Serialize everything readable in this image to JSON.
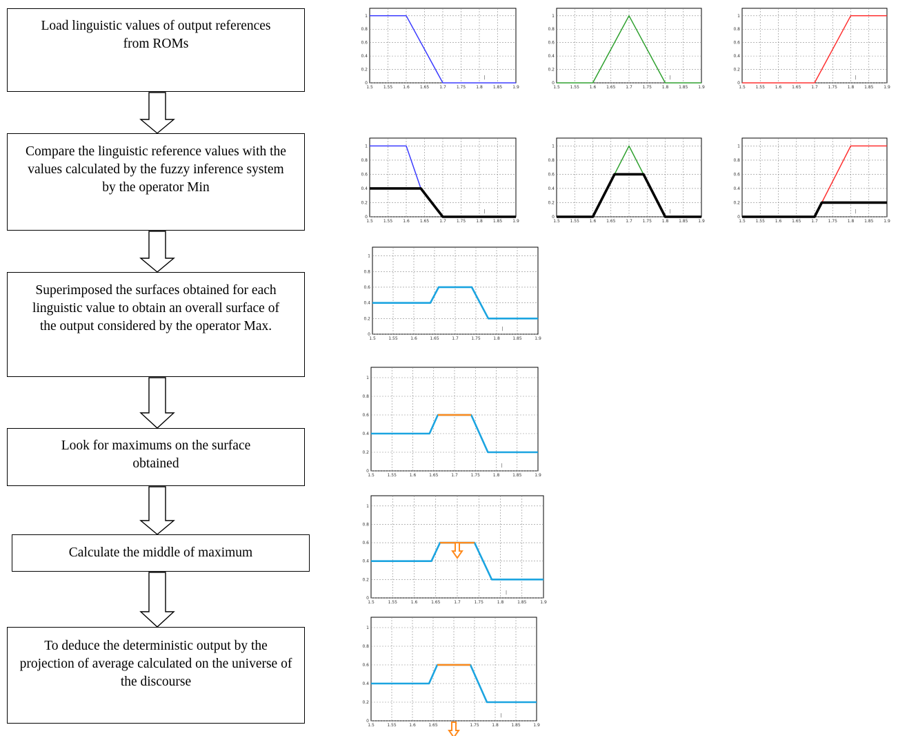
{
  "steps": [
    {
      "text": "Load linguistic values of output references from ROMs"
    },
    {
      "text": "Compare the linguistic reference values with the values calculated by the fuzzy inference system by the operator Min"
    },
    {
      "text": "Superimposed the surfaces obtained for each linguistic value to obtain an overall surface of the output considered by the operator Max."
    },
    {
      "text": "Look for maximums on the surface obtained"
    },
    {
      "text": "Calculate the middle of maximum"
    },
    {
      "text": "To deduce the deterministic output by the projection of average calculated on the universe of the discourse"
    }
  ],
  "colors": {
    "blue": "#3b3bff",
    "green": "#2ea02e",
    "red": "#ff3030",
    "black": "#000000",
    "cyan": "#1ba4e0",
    "orange": "#ff8a1c"
  },
  "chart_data": [
    {
      "type": "line",
      "x": [
        1.5,
        1.6,
        1.7,
        1.9
      ],
      "series": [
        {
          "values": [
            1,
            1,
            0,
            0
          ],
          "color": "blue"
        }
      ],
      "xlim": [
        1.5,
        1.9
      ],
      "ylim": [
        0,
        1
      ]
    },
    {
      "type": "line",
      "x": [
        1.5,
        1.6,
        1.7,
        1.8,
        1.9
      ],
      "series": [
        {
          "values": [
            0,
            0,
            1,
            0,
            0
          ],
          "color": "green"
        }
      ],
      "xlim": [
        1.5,
        1.9
      ],
      "ylim": [
        0,
        1
      ]
    },
    {
      "type": "line",
      "x": [
        1.5,
        1.7,
        1.8,
        1.9
      ],
      "series": [
        {
          "values": [
            0,
            0,
            1,
            1
          ],
          "color": "red"
        }
      ],
      "xlim": [
        1.5,
        1.9
      ],
      "ylim": [
        0,
        1
      ]
    },
    {
      "type": "line",
      "x": [
        1.5,
        1.6,
        1.64,
        1.7,
        1.9
      ],
      "series": [
        {
          "values": [
            1,
            1,
            0.4,
            0,
            0
          ],
          "color": "blue"
        },
        {
          "values": [
            0.4,
            0.4,
            0.4,
            0,
            0
          ],
          "color": "black",
          "bold": true
        }
      ],
      "xlim": [
        1.5,
        1.9
      ],
      "ylim": [
        0,
        1
      ]
    },
    {
      "type": "line",
      "x": [
        1.5,
        1.6,
        1.66,
        1.7,
        1.74,
        1.8,
        1.9
      ],
      "series": [
        {
          "values": [
            0,
            0,
            0.6,
            1,
            0.6,
            0,
            0
          ],
          "color": "green"
        },
        {
          "values": [
            0,
            0,
            0.6,
            0.6,
            0.6,
            0,
            0
          ],
          "color": "black",
          "bold": true
        }
      ],
      "xlim": [
        1.5,
        1.9
      ],
      "ylim": [
        0,
        1
      ]
    },
    {
      "type": "line",
      "x": [
        1.5,
        1.7,
        1.72,
        1.8,
        1.9
      ],
      "series": [
        {
          "values": [
            0,
            0,
            0.2,
            1,
            1
          ],
          "color": "red"
        },
        {
          "values": [
            0,
            0,
            0.2,
            0.2,
            0.2
          ],
          "color": "black",
          "bold": true
        }
      ],
      "xlim": [
        1.5,
        1.9
      ],
      "ylim": [
        0,
        1
      ]
    },
    {
      "type": "line",
      "x": [
        1.5,
        1.64,
        1.66,
        1.74,
        1.78,
        1.9
      ],
      "series": [
        {
          "values": [
            0.4,
            0.4,
            0.6,
            0.6,
            0.2,
            0.2
          ],
          "color": "cyan"
        }
      ],
      "xlim": [
        1.5,
        1.9
      ],
      "ylim": [
        0,
        1
      ]
    },
    {
      "type": "line",
      "x": [
        1.5,
        1.64,
        1.66,
        1.74,
        1.78,
        1.9
      ],
      "series": [
        {
          "values": [
            0.4,
            0.4,
            0.6,
            0.6,
            0.2,
            0.2
          ],
          "color": "cyan"
        },
        {
          "values": [
            null,
            null,
            0.6,
            0.6,
            null,
            null
          ],
          "color": "orange"
        }
      ],
      "xlim": [
        1.5,
        1.9
      ],
      "ylim": [
        0,
        1
      ]
    },
    {
      "type": "line",
      "x": [
        1.5,
        1.64,
        1.66,
        1.74,
        1.78,
        1.9
      ],
      "series": [
        {
          "values": [
            0.4,
            0.4,
            0.6,
            0.6,
            0.2,
            0.2
          ],
          "color": "cyan"
        },
        {
          "values": [
            null,
            null,
            0.6,
            0.6,
            null,
            null
          ],
          "color": "orange"
        }
      ],
      "xlim": [
        1.5,
        1.9
      ],
      "ylim": [
        0,
        1
      ],
      "marker": {
        "x": 1.7,
        "y": 0.6
      }
    },
    {
      "type": "line",
      "x": [
        1.5,
        1.64,
        1.66,
        1.74,
        1.78,
        1.9
      ],
      "series": [
        {
          "values": [
            0.4,
            0.4,
            0.6,
            0.6,
            0.2,
            0.2
          ],
          "color": "cyan"
        },
        {
          "values": [
            null,
            null,
            0.6,
            0.6,
            null,
            null
          ],
          "color": "orange"
        }
      ],
      "xlim": [
        1.5,
        1.9
      ],
      "ylim": [
        0,
        1
      ],
      "marker": {
        "x": 1.7,
        "y": 0
      }
    }
  ],
  "axis": {
    "yticks": [
      "0",
      "0.2",
      "0.4",
      "0.6",
      "0.8",
      "1"
    ],
    "xticks": [
      "1.5",
      "1.55",
      "1.6",
      "1.65",
      "1.7",
      "1.75",
      "1.8",
      "1.85",
      "1.9"
    ]
  }
}
